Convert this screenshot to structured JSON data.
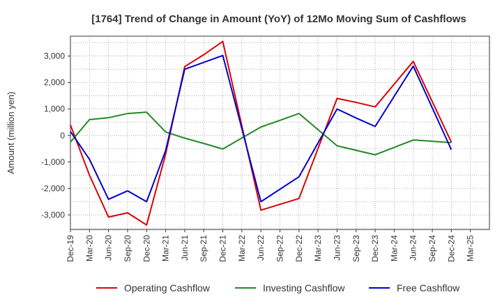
{
  "chart_data": {
    "type": "line",
    "title": "[1764]  Trend of Change in Amount (YoY) of 12Mo Moving Sum of Cashflows",
    "xlabel": "",
    "ylabel": "Amount (million yen)",
    "ylim": [
      -3550,
      3750
    ],
    "yticks": [
      -3000,
      -2000,
      -1000,
      0,
      1000,
      2000,
      3000
    ],
    "ytick_labels": [
      "-3,000",
      "-2,000",
      "-1,000",
      "0",
      "1,000",
      "2,000",
      "3,000"
    ],
    "grid": true,
    "legend_position": "bottom",
    "categories": [
      "Dec-19",
      "Mar-20",
      "Jun-20",
      "Sep-20",
      "Dec-20",
      "Mar-21",
      "Jun-21",
      "Sep-21",
      "Dec-21",
      "Mar-22",
      "Jun-22",
      "Sep-22",
      "Dec-22",
      "Mar-23",
      "Jun-23",
      "Sep-23",
      "Dec-23",
      "Mar-24",
      "Jun-24",
      "Sep-24",
      "Dec-24",
      "Mar-25"
    ],
    "series": [
      {
        "name": "Operating Cashflow",
        "color": "#dd0000",
        "values": [
          400,
          -1500,
          -3080,
          -2920,
          -3380,
          -700,
          2600,
          3050,
          3550,
          null,
          -2820,
          -2600,
          -2380,
          null,
          1400,
          1250,
          1080,
          null,
          2800,
          null,
          -250,
          null
        ]
      },
      {
        "name": "Investing Cashflow",
        "color": "#228822",
        "values": [
          -250,
          600,
          670,
          830,
          880,
          130,
          -100,
          -300,
          -510,
          null,
          320,
          570,
          830,
          null,
          -390,
          -560,
          -730,
          null,
          -170,
          null,
          -270,
          null
        ]
      },
      {
        "name": "Free Cashflow",
        "color": "#0000cc",
        "values": [
          150,
          -900,
          -2410,
          -2090,
          -2500,
          -570,
          2500,
          2760,
          3020,
          null,
          -2500,
          -2030,
          -1560,
          null,
          1000,
          660,
          340,
          null,
          2620,
          null,
          -540,
          null
        ]
      }
    ]
  }
}
